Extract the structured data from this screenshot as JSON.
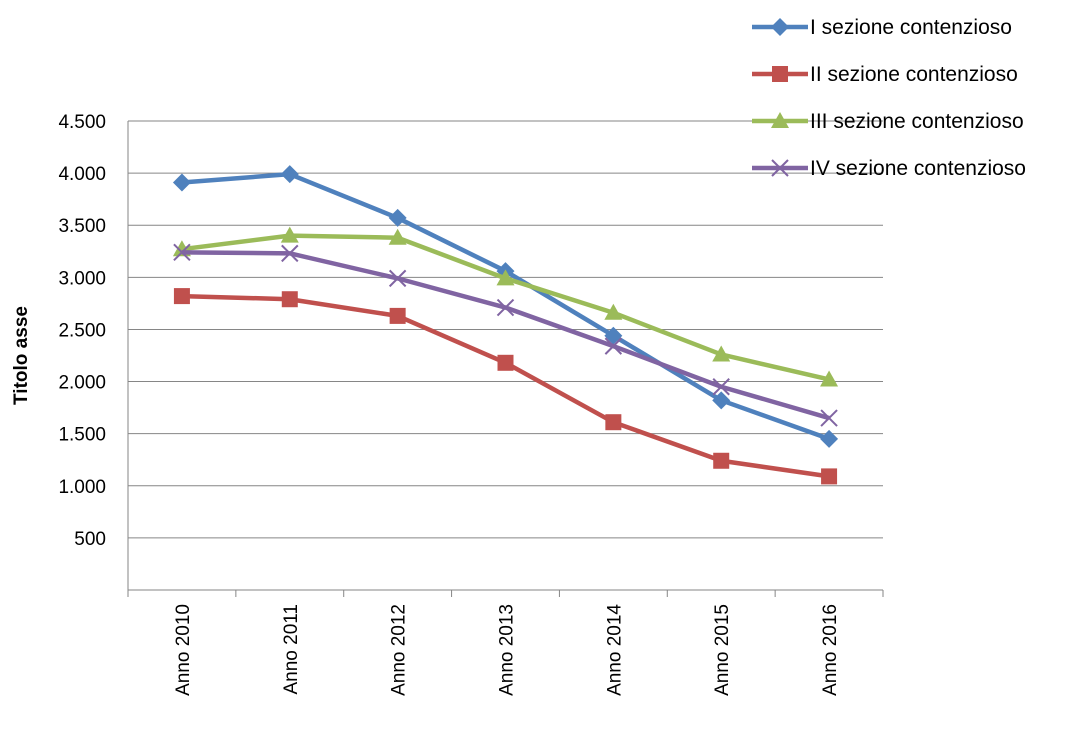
{
  "chart_data": {
    "type": "line",
    "title": "",
    "xlabel": "",
    "ylabel": "Titolo asse",
    "categories": [
      "Anno 2010",
      "Anno 2011",
      "Anno 2012",
      "Anno 2013",
      "Anno 2014",
      "Anno 2015",
      "Anno 2016"
    ],
    "ylim": [
      0,
      4500
    ],
    "yticks": [
      500,
      1000,
      1500,
      2000,
      2500,
      3000,
      3500,
      4000,
      4500
    ],
    "ytick_labels": [
      "500",
      "1.000",
      "1.500",
      "2.000",
      "2.500",
      "3.000",
      "3.500",
      "4.000",
      "4.500"
    ],
    "grid": true,
    "legend_position": "top-right",
    "series": [
      {
        "name": "I sezione contenzioso",
        "color": "#4F81BD",
        "marker": "diamond",
        "values": [
          3910,
          3990,
          3570,
          3060,
          2440,
          1820,
          1450
        ]
      },
      {
        "name": "II sezione contenzioso",
        "color": "#C0504D",
        "marker": "square",
        "values": [
          2820,
          2790,
          2630,
          2180,
          1610,
          1240,
          1090
        ]
      },
      {
        "name": "III sezione contenzioso",
        "color": "#9BBB59",
        "marker": "triangle",
        "values": [
          3270,
          3400,
          3380,
          2990,
          2660,
          2260,
          2020
        ]
      },
      {
        "name": "IV sezione contenzioso",
        "color": "#8064A2",
        "marker": "x",
        "values": [
          3240,
          3230,
          2990,
          2710,
          2340,
          1950,
          1650
        ]
      }
    ]
  }
}
